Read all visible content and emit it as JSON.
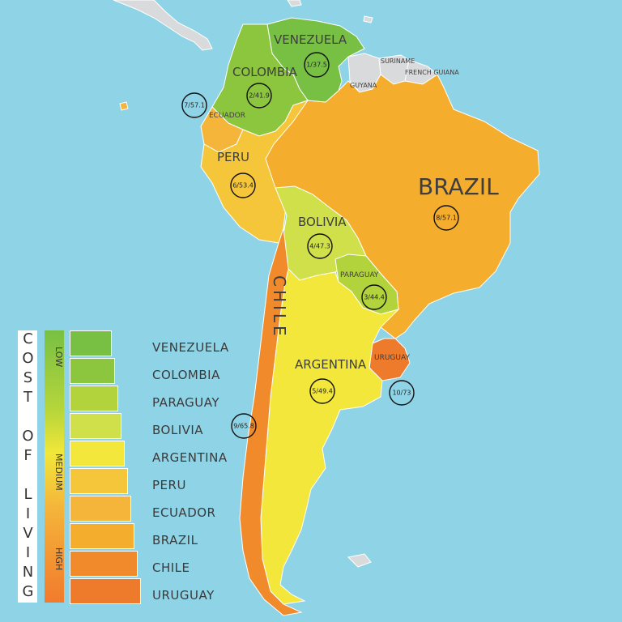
{
  "colors": {
    "ocean": "#8fd4e6",
    "neighbor": "#d9dadc",
    "venezuela": "#78c043",
    "colombia": "#8cc63f",
    "paraguay": "#b2d33b",
    "bolivia": "#cfe04a",
    "argentina": "#f2e73a",
    "peru": "#f6c63a",
    "ecuador": "#f4b53a",
    "brazil": "#f4ad2d",
    "chile": "#f08a2a",
    "uruguay": "#ee7a2c"
  },
  "map": {
    "labels": {
      "venezuela": "VENEZUELA",
      "colombia": "COLOMBIA",
      "ecuador": "ECUADOR",
      "peru": "PERU",
      "brazil": "BRAZIL",
      "bolivia": "BOLIVIA",
      "paraguay": "PARAGUAY",
      "chile": "CHILE",
      "argentina": "ARGENTINA",
      "uruguay": "URUGUAY",
      "suriname": "SURINAME",
      "french_guiana": "FRENCH GUIANA",
      "guyana": "GUYANA"
    },
    "ranks": {
      "venezuela": "1/37.5",
      "colombia": "2/41.9",
      "paraguay": "3/44.4",
      "bolivia": "4/47.3",
      "argentina": "5/49.4",
      "peru": "6/53.4",
      "ecuador": "7/57.1",
      "brazil": "8/57.1",
      "chile": "9/65.8",
      "uruguay": "10/73"
    }
  },
  "legend": {
    "title": "COST OF LIVING",
    "scale": [
      "LOW",
      "MEDIUM",
      "HIGH"
    ],
    "items": [
      {
        "name": "VENEZUELA",
        "color": "#78c043"
      },
      {
        "name": "COLOMBIA",
        "color": "#8cc63f"
      },
      {
        "name": "PARAGUAY",
        "color": "#b2d33b"
      },
      {
        "name": "BOLIVIA",
        "color": "#cfe04a"
      },
      {
        "name": "ARGENTINA",
        "color": "#f2e73a"
      },
      {
        "name": "PERU",
        "color": "#f6c63a"
      },
      {
        "name": "ECUADOR",
        "color": "#f4b53a"
      },
      {
        "name": "BRAZIL",
        "color": "#f4ad2d"
      },
      {
        "name": "CHILE",
        "color": "#f08a2a"
      },
      {
        "name": "URUGUAY",
        "color": "#ee7a2c"
      }
    ]
  }
}
